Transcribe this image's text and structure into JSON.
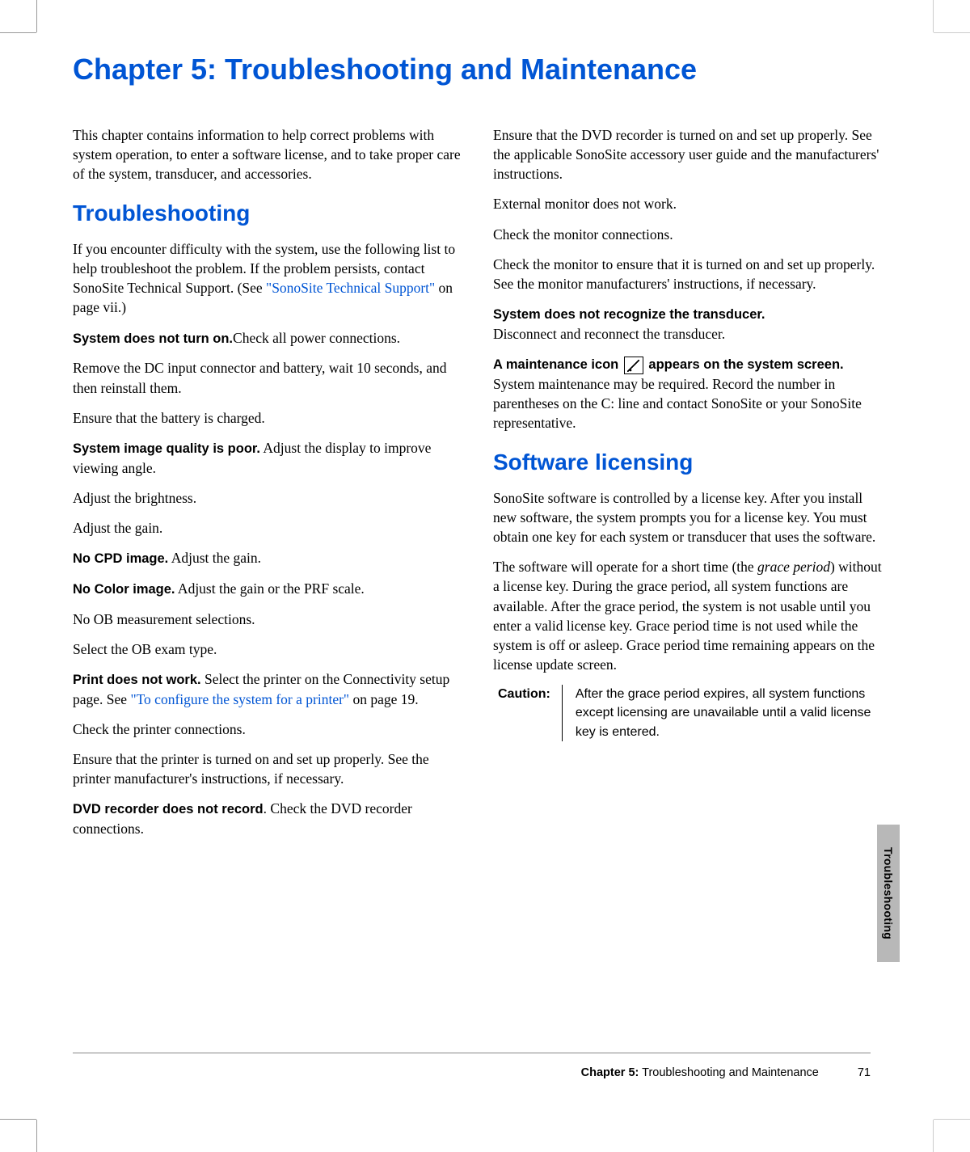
{
  "chapter_title": "Chapter 5: Troubleshooting and Maintenance",
  "left": {
    "intro": "This chapter contains information to help correct problems with system operation, to enter a software license, and to take proper care of the system, transducer, and accessories.",
    "h_troubleshooting": "Troubleshooting",
    "p1a": "If you encounter difficulty with the system, use the following list to help troubleshoot the problem. If the problem persists, contact SonoSite Technical Support. (See ",
    "p1_link": "\"SonoSite Technical Support\"",
    "p1b": " on page vii.)",
    "b_turnon": "System does not turn on.",
    "t_turnon": "Check all power connections.",
    "p_dc": "Remove the DC input connector and battery, wait 10 seconds, and then reinstall them.",
    "p_battery": "Ensure that the battery is charged.",
    "b_image": "System image quality is poor.",
    "t_image": " Adjust the display to improve viewing angle.",
    "p_bright": "Adjust the brightness.",
    "p_gain": "Adjust the gain.",
    "b_cpd": "No CPD image.",
    "t_cpd": " Adjust the gain.",
    "b_color": "No Color image.",
    "t_color": " Adjust the gain or the PRF scale.",
    "p_ob1": "No OB measurement selections.",
    "p_ob2": "Select the OB exam type.",
    "b_print": "Print does not work.",
    "t_print_a": " Select the printer on the Connectivity setup page. See ",
    "t_print_link": "\"To configure the system for a printer\"",
    "t_print_b": " on page 19.",
    "p_printconn": "Check the printer connections.",
    "p_printon": "Ensure that the printer is turned on and set up properly. See the printer manufacturer's instructions, if necessary.",
    "b_dvd": "DVD recorder does not record",
    "t_dvd": ". Check the DVD recorder connections."
  },
  "right": {
    "p_dvdon": "Ensure that the DVD recorder is turned on and set up properly. See the applicable SonoSite accessory user guide and the manufacturers' instructions.",
    "p_ext1": "External monitor does not work.",
    "p_ext2": "Check the monitor connections.",
    "p_ext3": "Check the monitor to ensure that it is turned on and set up properly. See the monitor manufacturers' instructions, if necessary.",
    "b_trans": "System does not recognize the transducer.",
    "t_trans": "Disconnect and reconnect the transducer.",
    "b_maint_a": "A maintenance icon ",
    "b_maint_b": " appears on the system screen.",
    "t_maint": " System maintenance may be required. Record the number in parentheses on the C: line and contact SonoSite or your SonoSite representative.",
    "h_software": "Software licensing",
    "p_sw1": "SonoSite software is controlled by a license key. After you install new software, the system prompts you for a license key. You must obtain one key for each system or transducer that uses the software.",
    "p_sw2a": "The software will operate for a short time (the ",
    "p_sw2_it": "grace period",
    "p_sw2b": ") without a license key. During the grace period, all system functions are available. After the grace period, the system is not usable until you enter a valid license key. Grace period time is not used while the system is off or asleep. Grace period time remaining appears on the license update screen.",
    "caution_label": "Caution:",
    "caution_text": "After the grace period expires, all system functions except licensing are unavailable until a valid license key is entered."
  },
  "sidetab": "Troubleshooting",
  "footer": {
    "chapter": "Chapter 5:",
    "title": "  Troubleshooting and Maintenance",
    "page": "71"
  }
}
